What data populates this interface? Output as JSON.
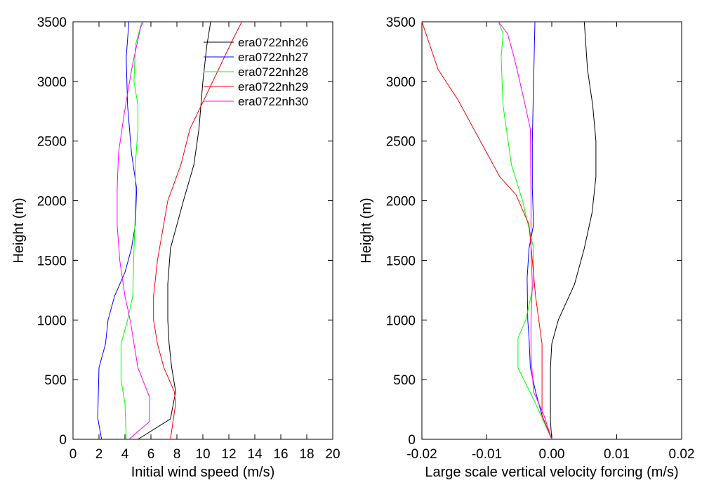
{
  "chart_data": [
    {
      "type": "line",
      "xlabel": "Initial wind speed (m/s)",
      "ylabel": "Height (m)",
      "xlim": [
        0,
        20
      ],
      "ylim": [
        0,
        3500
      ],
      "xticks": [
        "0",
        "2",
        "4",
        "6",
        "8",
        "10",
        "12",
        "14",
        "16",
        "18",
        "20"
      ],
      "yticks": [
        "0",
        "500",
        "1000",
        "1500",
        "2000",
        "2500",
        "3000",
        "3500"
      ],
      "grid": false,
      "legend": "top-right",
      "series": [
        {
          "name": "era0722nh26",
          "color": "#000000",
          "points": [
            [
              5.0,
              0
            ],
            [
              7.5,
              170
            ],
            [
              7.9,
              400
            ],
            [
              7.6,
              600
            ],
            [
              7.4,
              800
            ],
            [
              7.3,
              1000
            ],
            [
              7.3,
              1300
            ],
            [
              7.5,
              1600
            ],
            [
              8.5,
              2000
            ],
            [
              9.3,
              2300
            ],
            [
              9.7,
              2600
            ],
            [
              10.0,
              3000
            ],
            [
              10.3,
              3300
            ],
            [
              10.6,
              3500
            ]
          ]
        },
        {
          "name": "era0722nh27",
          "color": "#0000ff",
          "points": [
            [
              2.2,
              0
            ],
            [
              1.9,
              180
            ],
            [
              2.0,
              600
            ],
            [
              2.5,
              800
            ],
            [
              2.7,
              1000
            ],
            [
              3.2,
              1200
            ],
            [
              4.0,
              1400
            ],
            [
              4.5,
              1600
            ],
            [
              4.8,
              1800
            ],
            [
              4.9,
              2100
            ],
            [
              4.5,
              2400
            ],
            [
              4.2,
              2800
            ],
            [
              4.1,
              3200
            ],
            [
              4.3,
              3500
            ]
          ]
        },
        {
          "name": "era0722nh28",
          "color": "#00ff00",
          "points": [
            [
              4.1,
              0
            ],
            [
              4.0,
              300
            ],
            [
              3.7,
              500
            ],
            [
              3.7,
              800
            ],
            [
              4.2,
              1000
            ],
            [
              4.6,
              1200
            ],
            [
              4.7,
              1600
            ],
            [
              4.8,
              1900
            ],
            [
              4.8,
              2300
            ],
            [
              5.0,
              2600
            ],
            [
              5.0,
              2800
            ],
            [
              4.7,
              3000
            ],
            [
              4.8,
              3300
            ],
            [
              5.3,
              3500
            ]
          ]
        },
        {
          "name": "era0722nh29",
          "color": "#ff0000",
          "points": [
            [
              7.5,
              0
            ],
            [
              7.9,
              300
            ],
            [
              7.8,
              400
            ],
            [
              7.0,
              600
            ],
            [
              6.5,
              800
            ],
            [
              6.2,
              1000
            ],
            [
              6.2,
              1200
            ],
            [
              6.5,
              1500
            ],
            [
              7.3,
              2000
            ],
            [
              8.3,
              2300
            ],
            [
              9.0,
              2600
            ],
            [
              10.1,
              2850
            ],
            [
              11.2,
              3100
            ],
            [
              12.3,
              3350
            ],
            [
              13.0,
              3500
            ]
          ]
        },
        {
          "name": "era0722nh30",
          "color": "#ff00ff",
          "points": [
            [
              4.3,
              0
            ],
            [
              5.9,
              150
            ],
            [
              5.9,
              350
            ],
            [
              5.0,
              600
            ],
            [
              4.4,
              1000
            ],
            [
              4.0,
              1200
            ],
            [
              3.6,
              1500
            ],
            [
              3.4,
              1800
            ],
            [
              3.4,
              2100
            ],
            [
              3.5,
              2400
            ],
            [
              3.9,
              2700
            ],
            [
              4.2,
              2900
            ],
            [
              4.6,
              3150
            ],
            [
              5.2,
              3450
            ],
            [
              5.4,
              3500
            ]
          ]
        }
      ]
    },
    {
      "type": "line",
      "xlabel": "Large scale vertical velocity forcing (m/s)",
      "ylabel": "Height (m)",
      "xlim": [
        -0.02,
        0.02
      ],
      "ylim": [
        0,
        3500
      ],
      "xticks": [
        "-0.02",
        "-0.01",
        "0.00",
        "0.01",
        "0.02"
      ],
      "yticks": [
        "0",
        "500",
        "1000",
        "1500",
        "2000",
        "2500",
        "3000",
        "3500"
      ],
      "grid": false,
      "series": [
        {
          "name": "era0722nh26",
          "color": "#000000",
          "points": [
            [
              0.0,
              0
            ],
            [
              -0.0002,
              150
            ],
            [
              -0.0002,
              400
            ],
            [
              -0.0002,
              600
            ],
            [
              0.0,
              800
            ],
            [
              0.001,
              1000
            ],
            [
              0.0035,
              1300
            ],
            [
              0.005,
              1600
            ],
            [
              0.0062,
              1900
            ],
            [
              0.0068,
              2200
            ],
            [
              0.0068,
              2500
            ],
            [
              0.0063,
              2800
            ],
            [
              0.0055,
              3100
            ],
            [
              0.005,
              3500
            ]
          ]
        },
        {
          "name": "era0722nh27",
          "color": "#0000ff",
          "points": [
            [
              0.0,
              0
            ],
            [
              -0.0015,
              200
            ],
            [
              -0.0025,
              400
            ],
            [
              -0.0033,
              600
            ],
            [
              -0.0035,
              850
            ],
            [
              -0.0037,
              1000
            ],
            [
              -0.0038,
              1350
            ],
            [
              -0.0035,
              1600
            ],
            [
              -0.0028,
              1800
            ],
            [
              -0.003,
              2100
            ],
            [
              -0.003,
              2500
            ],
            [
              -0.0028,
              3000
            ],
            [
              -0.0026,
              3500
            ]
          ]
        },
        {
          "name": "era0722nh28",
          "color": "#00ff00",
          "points": [
            [
              0.0,
              0
            ],
            [
              -0.0025,
              300
            ],
            [
              -0.0052,
              600
            ],
            [
              -0.0052,
              850
            ],
            [
              -0.004,
              1000
            ],
            [
              -0.0028,
              1300
            ],
            [
              -0.0028,
              1600
            ],
            [
              -0.0045,
              2000
            ],
            [
              -0.0062,
              2300
            ],
            [
              -0.0075,
              2800
            ],
            [
              -0.0078,
              3200
            ],
            [
              -0.0075,
              3400
            ],
            [
              -0.0082,
              3500
            ]
          ]
        },
        {
          "name": "era0722nh29",
          "color": "#ff0000",
          "points": [
            [
              0.0,
              0
            ],
            [
              -0.0015,
              200
            ],
            [
              -0.0015,
              500
            ],
            [
              -0.0015,
              800
            ],
            [
              -0.002,
              1000
            ],
            [
              -0.0025,
              1200
            ],
            [
              -0.003,
              1500
            ],
            [
              -0.0035,
              1800
            ],
            [
              -0.0055,
              2050
            ],
            [
              -0.008,
              2200
            ],
            [
              -0.011,
              2500
            ],
            [
              -0.0145,
              2850
            ],
            [
              -0.0175,
              3100
            ],
            [
              -0.02,
              3500
            ]
          ]
        },
        {
          "name": "era0722nh30",
          "color": "#ff00ff",
          "points": [
            [
              0.0,
              0
            ],
            [
              -0.0012,
              200
            ],
            [
              -0.0028,
              400
            ],
            [
              -0.0032,
              700
            ],
            [
              -0.0032,
              1000
            ],
            [
              -0.003,
              1300
            ],
            [
              -0.0032,
              1600
            ],
            [
              -0.0032,
              2000
            ],
            [
              -0.0033,
              2600
            ],
            [
              -0.0045,
              2900
            ],
            [
              -0.0058,
              3200
            ],
            [
              -0.0068,
              3400
            ],
            [
              -0.0082,
              3500
            ]
          ]
        }
      ]
    }
  ]
}
